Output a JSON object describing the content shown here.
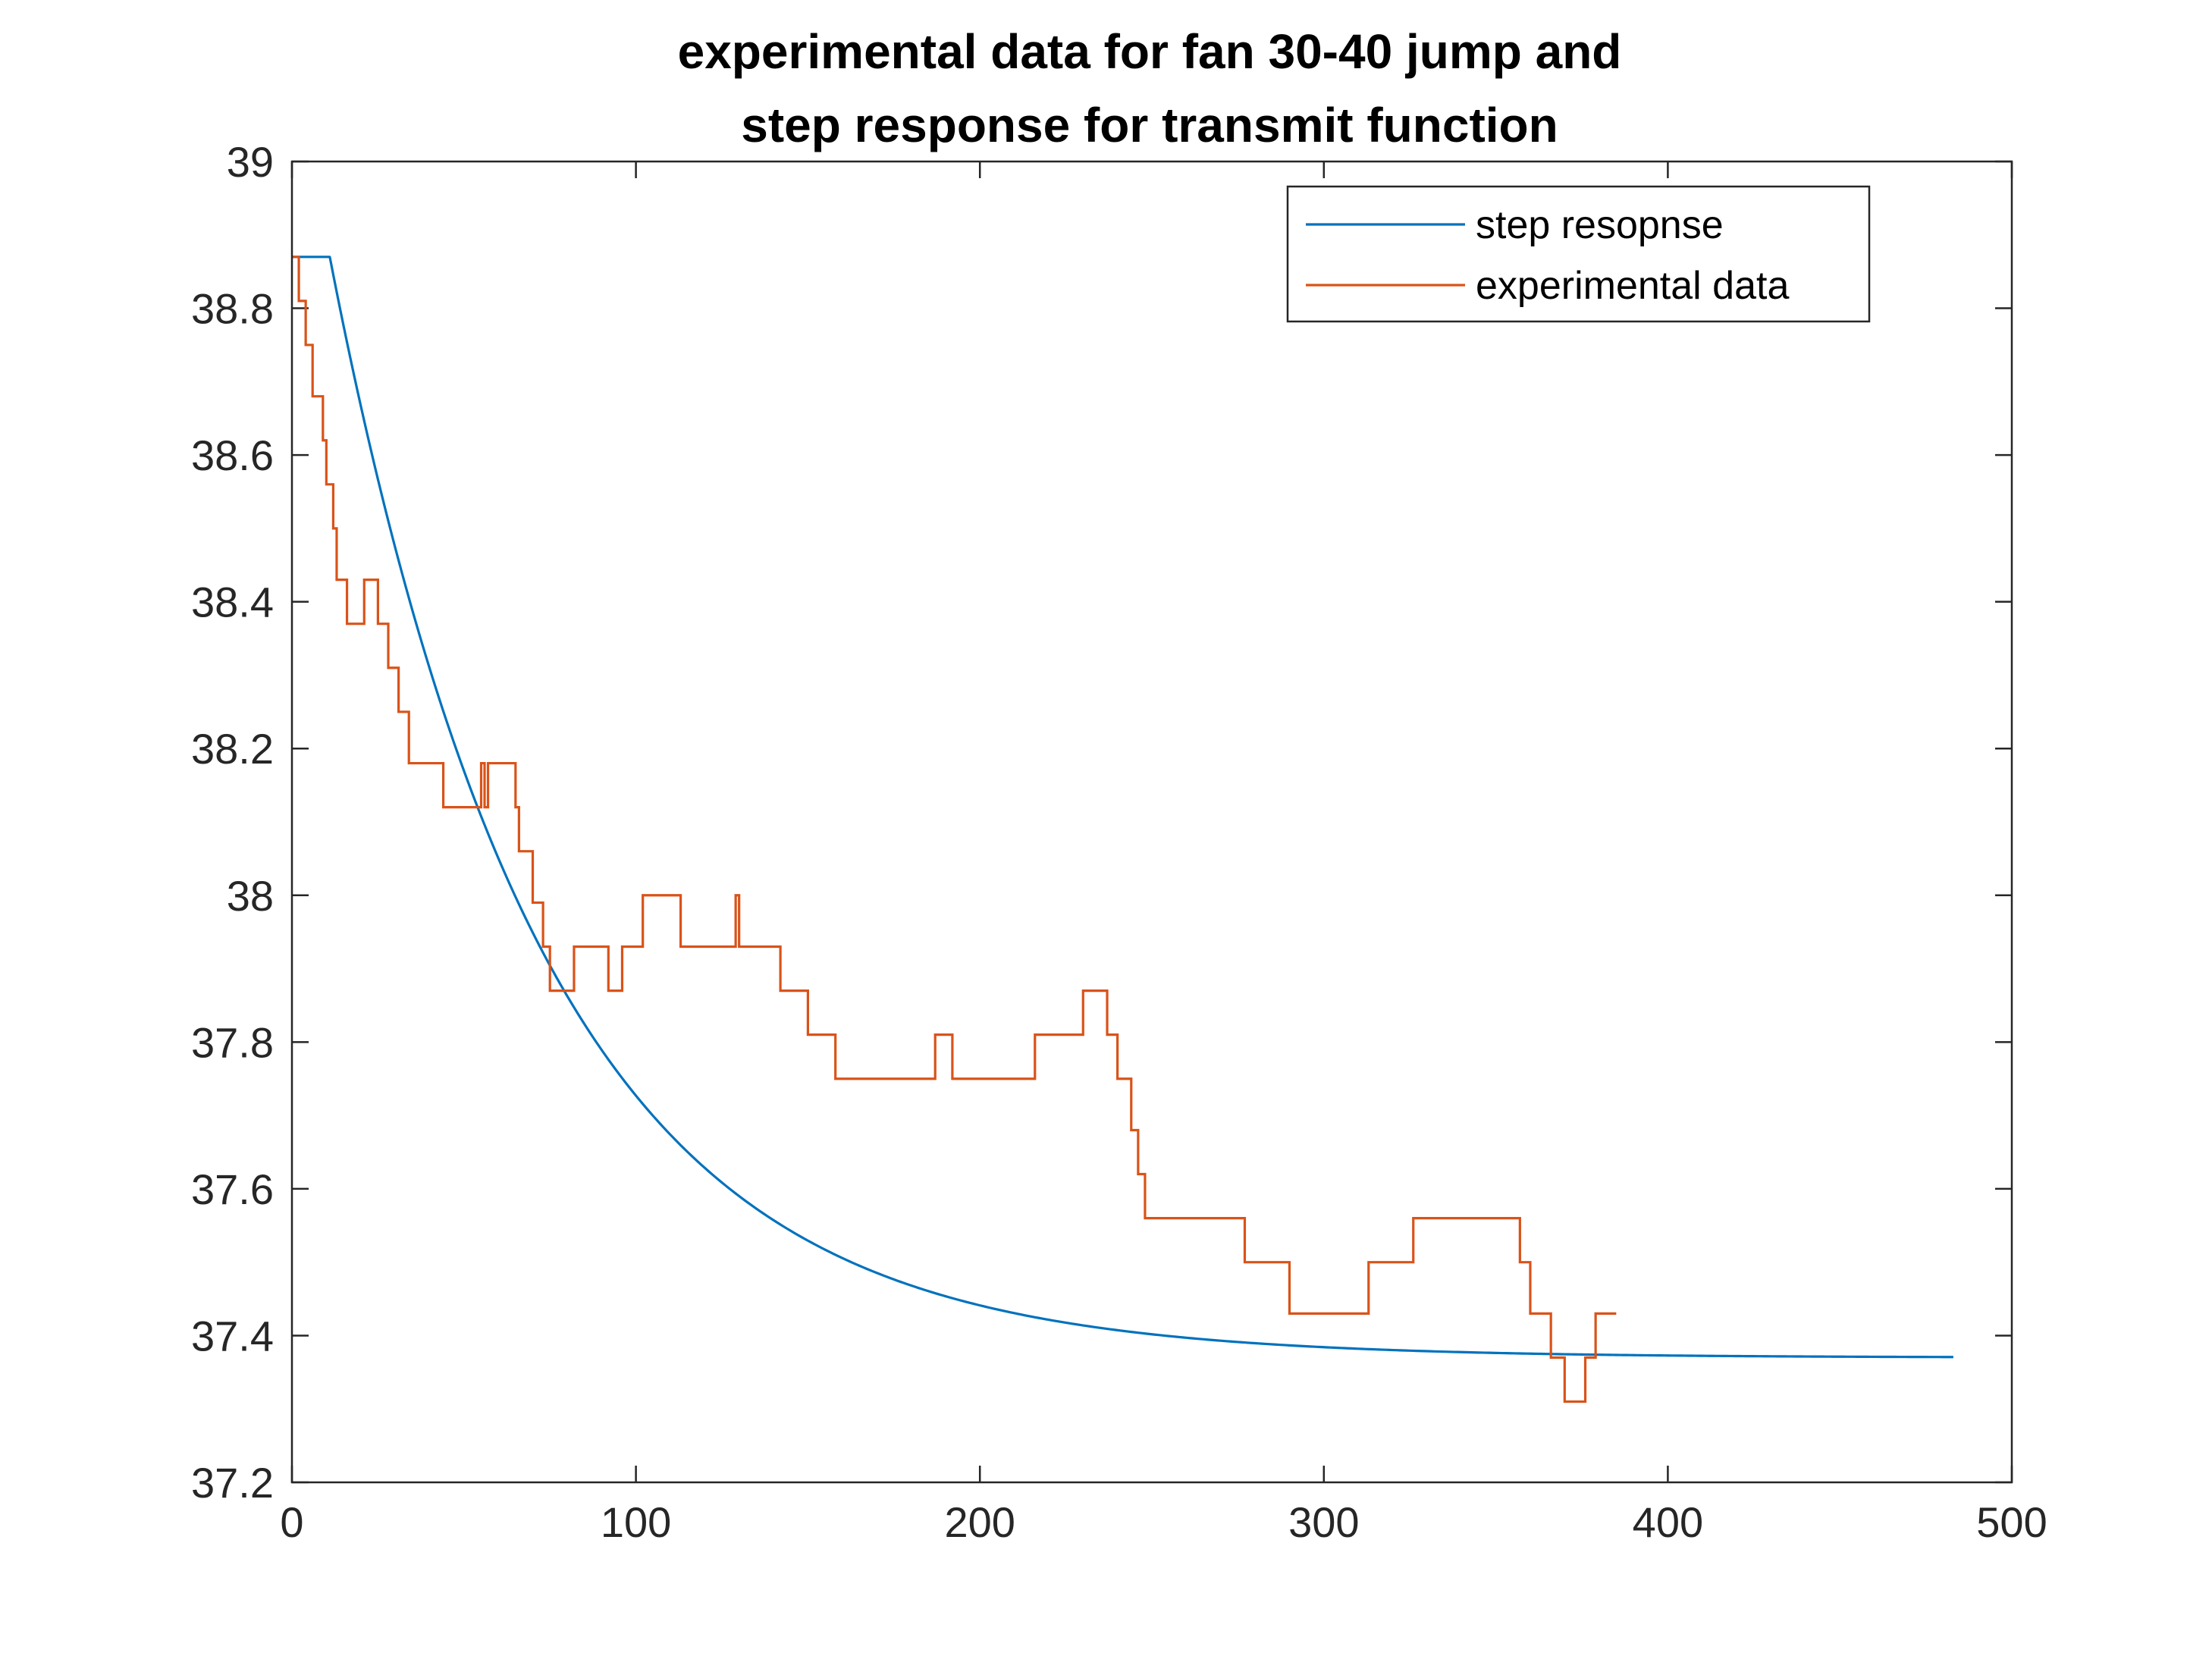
{
  "chart_data": {
    "type": "line",
    "title": [
      "experimental data for fan 30-40 jump and",
      "step response for transmit function"
    ],
    "xlabel": "",
    "ylabel": "",
    "xlim": [
      0,
      500
    ],
    "ylim": [
      37.2,
      39
    ],
    "xticks": [
      0,
      100,
      200,
      300,
      400,
      500
    ],
    "yticks": [
      37.2,
      37.4,
      37.6,
      37.8,
      38,
      38.2,
      38.4,
      38.6,
      38.8,
      39
    ],
    "xtick_labels": [
      "0",
      "100",
      "200",
      "300",
      "400",
      "500"
    ],
    "ytick_labels": [
      "37.2",
      "37.4",
      "37.6",
      "37.8",
      "38",
      "38.2",
      "38.4",
      "38.6",
      "38.8",
      "39"
    ],
    "grid": false,
    "legend_position": "top-right",
    "series": [
      {
        "name": "step resopnse",
        "color": "#0072BD",
        "style": "first-order step response",
        "delay": 11,
        "initial": 38.87,
        "final": 37.37,
        "time_constant": 62,
        "x_end": 483
      },
      {
        "name": "experimental data",
        "color": "#D95319",
        "style": "stairs",
        "points": [
          [
            0,
            38.87
          ],
          [
            2,
            38.81
          ],
          [
            4,
            38.75
          ],
          [
            6,
            38.68
          ],
          [
            9,
            38.62
          ],
          [
            10,
            38.56
          ],
          [
            12,
            38.5
          ],
          [
            13,
            38.43
          ],
          [
            16,
            38.37
          ],
          [
            21,
            38.43
          ],
          [
            25,
            38.37
          ],
          [
            28,
            38.31
          ],
          [
            31,
            38.25
          ],
          [
            34,
            38.18
          ],
          [
            44,
            38.12
          ],
          [
            55,
            38.18
          ],
          [
            56,
            38.12
          ],
          [
            57,
            38.18
          ],
          [
            65,
            38.12
          ],
          [
            66,
            38.06
          ],
          [
            70,
            37.99
          ],
          [
            73,
            37.93
          ],
          [
            75,
            37.87
          ],
          [
            82,
            37.93
          ],
          [
            92,
            37.87
          ],
          [
            96,
            37.93
          ],
          [
            102,
            38.0
          ],
          [
            113,
            37.93
          ],
          [
            129,
            38.0
          ],
          [
            130,
            37.93
          ],
          [
            142,
            37.87
          ],
          [
            150,
            37.81
          ],
          [
            158,
            37.75
          ],
          [
            187,
            37.81
          ],
          [
            192,
            37.75
          ],
          [
            216,
            37.81
          ],
          [
            230,
            37.87
          ],
          [
            237,
            37.81
          ],
          [
            240,
            37.75
          ],
          [
            244,
            37.68
          ],
          [
            246,
            37.62
          ],
          [
            248,
            37.56
          ],
          [
            277,
            37.5
          ],
          [
            290,
            37.43
          ],
          [
            313,
            37.5
          ],
          [
            326,
            37.56
          ],
          [
            357,
            37.5
          ],
          [
            360,
            37.43
          ],
          [
            366,
            37.37
          ],
          [
            370,
            37.31
          ],
          [
            376,
            37.37
          ],
          [
            379,
            37.43
          ],
          [
            385,
            37.43
          ]
        ]
      }
    ]
  }
}
